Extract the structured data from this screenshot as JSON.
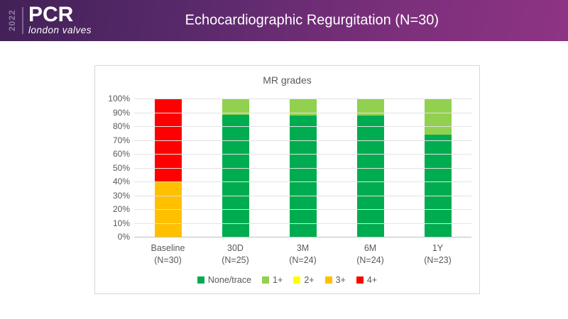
{
  "header": {
    "year": "2022",
    "brand": "PCR",
    "brand_sub": "london valves",
    "title": "Echocardiographic Regurgitation (N=30)",
    "gradient_left": "#422157",
    "gradient_right": "#8E3484"
  },
  "chart_data": {
    "type": "bar",
    "stacked": true,
    "title": "MR grades",
    "categories": [
      {
        "label": "Baseline",
        "sublabel": "(N=30)"
      },
      {
        "label": "30D",
        "sublabel": "(N=25)"
      },
      {
        "label": "3M",
        "sublabel": "(N=24)"
      },
      {
        "label": "6M",
        "sublabel": "(N=24)"
      },
      {
        "label": "1Y",
        "sublabel": "(N=23)"
      }
    ],
    "series": [
      {
        "name": "None/trace",
        "color": "#00AC50",
        "values": [
          0,
          88,
          87.5,
          87.5,
          74
        ]
      },
      {
        "name": "1+",
        "color": "#92D050",
        "values": [
          0,
          12,
          12.5,
          12.5,
          26
        ]
      },
      {
        "name": "2+",
        "color": "#FFFF00",
        "values": [
          0,
          0,
          0,
          0,
          0
        ]
      },
      {
        "name": "3+",
        "color": "#FFC000",
        "values": [
          40,
          0,
          0,
          0,
          0
        ]
      },
      {
        "name": "4+",
        "color": "#FF0000",
        "values": [
          60,
          0,
          0,
          0,
          0
        ]
      }
    ],
    "y_axis": {
      "min": 0,
      "max": 100,
      "step": 10,
      "unit": "%"
    },
    "grid": true,
    "legend_position": "bottom"
  }
}
